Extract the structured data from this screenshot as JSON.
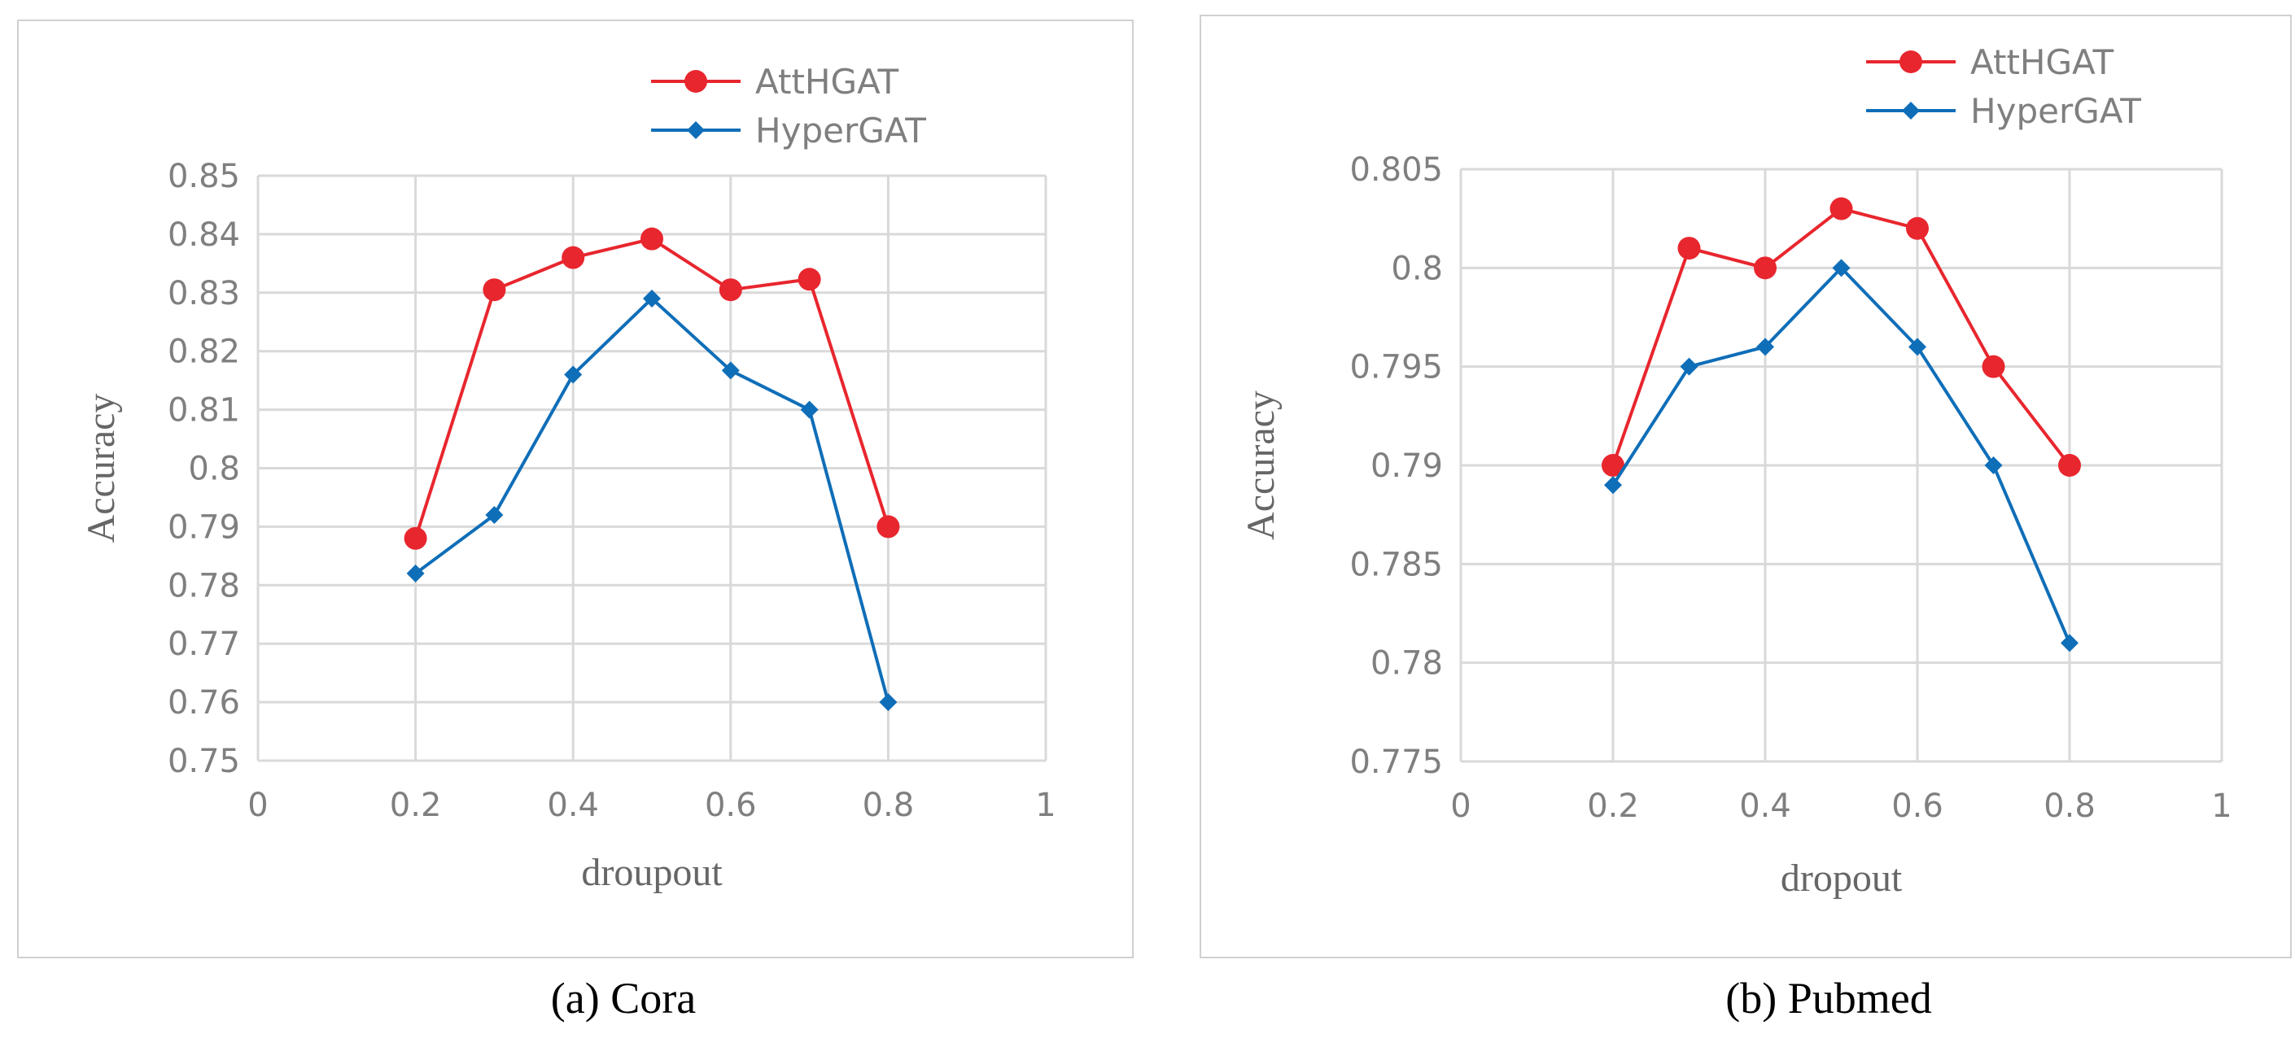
{
  "colors": {
    "attn": "#E8262E",
    "hyper": "#0F6EB8",
    "grid": "#D9D9D9",
    "frame": "#D0D0D0",
    "tick": "#7F7F7F"
  },
  "chart_data": [
    {
      "type": "line",
      "caption": "(a) Cora",
      "xlabel": "droupout",
      "ylabel": "Accuracy",
      "xlim": [
        0,
        1
      ],
      "ylim": [
        0.75,
        0.85
      ],
      "xticks": [
        "0",
        "0.2",
        "0.4",
        "0.6",
        "0.8",
        "1"
      ],
      "yticks": [
        "0.75",
        "0.76",
        "0.77",
        "0.78",
        "0.79",
        "0.8",
        "0.81",
        "0.82",
        "0.83",
        "0.84",
        "0.85"
      ],
      "x": [
        0.2,
        0.3,
        0.4,
        0.5,
        0.6,
        0.7,
        0.8
      ],
      "series": [
        {
          "name": "AttHGAT",
          "marker": "circle",
          "values": [
            0.788,
            0.8305,
            0.836,
            0.8392,
            0.8305,
            0.8323,
            0.79
          ]
        },
        {
          "name": "HyperGAT",
          "marker": "diamond",
          "values": [
            0.782,
            0.792,
            0.816,
            0.829,
            0.8167,
            0.81,
            0.76
          ]
        }
      ],
      "legend": "top-right"
    },
    {
      "type": "line",
      "caption": "(b) Pubmed",
      "xlabel": "dropout",
      "ylabel": "Accuracy",
      "xlim": [
        0,
        1
      ],
      "ylim": [
        0.775,
        0.805
      ],
      "xticks": [
        "0",
        "0.2",
        "0.4",
        "0.6",
        "0.8",
        "1"
      ],
      "yticks": [
        "0.775",
        "0.78",
        "0.785",
        "0.79",
        "0.795",
        "0.8",
        "0.805"
      ],
      "x": [
        0.2,
        0.3,
        0.4,
        0.5,
        0.6,
        0.7,
        0.8
      ],
      "series": [
        {
          "name": "AttHGAT",
          "marker": "circle",
          "values": [
            0.79,
            0.801,
            0.8,
            0.803,
            0.802,
            0.795,
            0.79
          ]
        },
        {
          "name": "HyperGAT",
          "marker": "diamond",
          "values": [
            0.789,
            0.795,
            0.796,
            0.8,
            0.796,
            0.79,
            0.781
          ]
        }
      ],
      "legend": "top-right"
    }
  ]
}
